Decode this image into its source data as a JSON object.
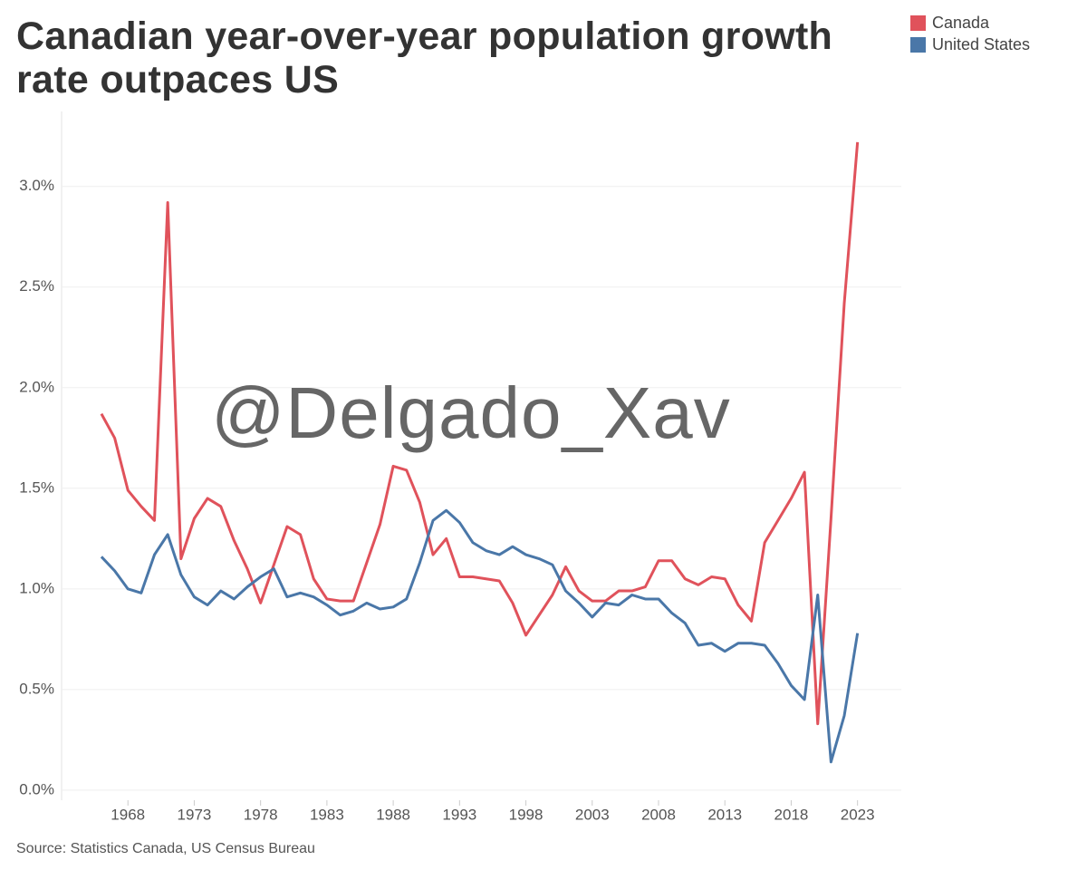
{
  "chart_data": {
    "type": "line",
    "title": "Canadian year-over-year population growth rate outpaces US",
    "source": "Source: Statistics Canada, US Census Bureau",
    "watermark": "@Delgado_Xav",
    "legend": "top-right",
    "grid": true,
    "x": [
      1966,
      1967,
      1968,
      1969,
      1970,
      1971,
      1972,
      1973,
      1974,
      1975,
      1976,
      1977,
      1978,
      1979,
      1980,
      1981,
      1982,
      1983,
      1984,
      1985,
      1986,
      1987,
      1988,
      1989,
      1990,
      1991,
      1992,
      1993,
      1994,
      1995,
      1996,
      1997,
      1998,
      1999,
      2000,
      2001,
      2002,
      2003,
      2004,
      2005,
      2006,
      2007,
      2008,
      2009,
      2010,
      2011,
      2012,
      2013,
      2014,
      2015,
      2016,
      2017,
      2018,
      2019,
      2020,
      2021,
      2022,
      2023
    ],
    "series": [
      {
        "name": "Canada",
        "color": "#e0525b",
        "values": [
          1.87,
          1.75,
          1.49,
          1.41,
          1.34,
          2.92,
          1.15,
          1.35,
          1.45,
          1.41,
          1.24,
          1.1,
          0.93,
          1.12,
          1.31,
          1.27,
          1.05,
          0.95,
          0.94,
          0.94,
          1.13,
          1.32,
          1.61,
          1.59,
          1.43,
          1.17,
          1.25,
          1.06,
          1.06,
          1.05,
          1.04,
          0.93,
          0.77,
          0.87,
          0.97,
          1.11,
          0.99,
          0.94,
          0.94,
          0.99,
          0.99,
          1.01,
          1.14,
          1.14,
          1.05,
          1.02,
          1.06,
          1.05,
          0.92,
          0.84,
          1.23,
          1.34,
          1.45,
          1.58,
          0.33,
          1.35,
          2.42,
          3.22
        ]
      },
      {
        "name": "United States",
        "color": "#4a77a8",
        "values": [
          1.16,
          1.09,
          1.0,
          0.98,
          1.17,
          1.27,
          1.07,
          0.96,
          0.92,
          0.99,
          0.95,
          1.01,
          1.06,
          1.1,
          0.96,
          0.98,
          0.96,
          0.92,
          0.87,
          0.89,
          0.93,
          0.9,
          0.91,
          0.95,
          1.13,
          1.34,
          1.39,
          1.33,
          1.23,
          1.19,
          1.17,
          1.21,
          1.17,
          1.15,
          1.12,
          0.99,
          0.93,
          0.86,
          0.93,
          0.92,
          0.97,
          0.95,
          0.95,
          0.88,
          0.83,
          0.72,
          0.73,
          0.69,
          0.73,
          0.73,
          0.72,
          0.63,
          0.52,
          0.45,
          0.97,
          0.14,
          0.37,
          0.78
        ]
      }
    ],
    "xlim": [
      1963,
      2026.3
    ],
    "xticks": [
      1968,
      1973,
      1978,
      1983,
      1988,
      1993,
      1998,
      2003,
      2008,
      2013,
      2018,
      2023
    ],
    "ylim": [
      -0.05,
      3.35
    ],
    "yticks": [
      {
        "value": 0,
        "label": "0.0%"
      },
      {
        "value": 0.5,
        "label": "0.5%"
      },
      {
        "value": 1,
        "label": "1.0%"
      },
      {
        "value": 1.5,
        "label": "1.5%"
      },
      {
        "value": 2,
        "label": "2.0%"
      },
      {
        "value": 2.5,
        "label": "2.5%"
      },
      {
        "value": 3,
        "label": "3.0%"
      }
    ]
  }
}
